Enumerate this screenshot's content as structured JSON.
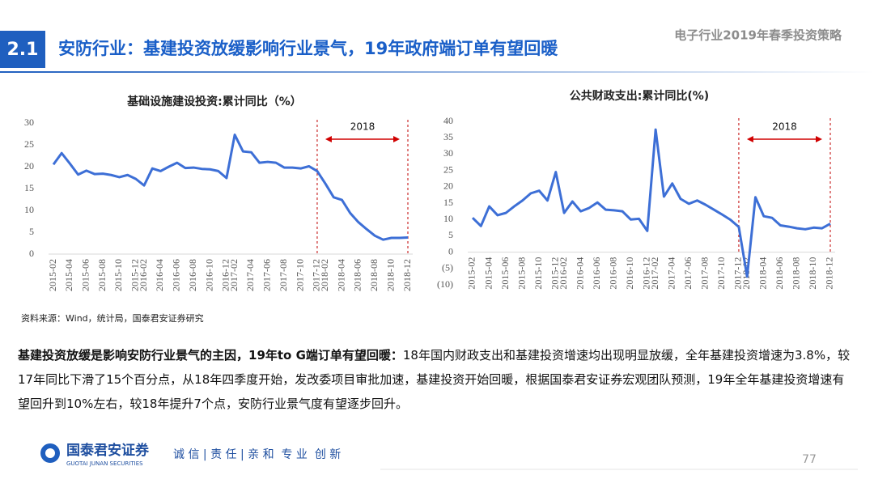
{
  "header": {
    "section": "2.1",
    "title": "安防行业：基建投资放缓影响行业景气，19年政府端订单有望回暖",
    "report": "电子行业2019年春季投资策略"
  },
  "chart_data": [
    {
      "type": "line",
      "title": "基础设施建设投资:累计同比（%）",
      "annotation": "2018",
      "categories": [
        "2015-02",
        null,
        "2015-04",
        null,
        "2015-06",
        null,
        "2015-08",
        null,
        "2015-10",
        null,
        "2015-12",
        "2016-02",
        null,
        "2016-04",
        null,
        "2016-06",
        null,
        "2016-08",
        null,
        "2016-10",
        null,
        "2016-12",
        "2017-02",
        null,
        "2017-04",
        null,
        "2017-06",
        null,
        "2017-08",
        null,
        "2017-10",
        null,
        "2017-12",
        "2018-02",
        null,
        "2018-04",
        null,
        "2018-06",
        null,
        "2018-08",
        null,
        "2018-10",
        null,
        "2018-12"
      ],
      "series": [
        {
          "color": "#3d6fd6",
          "values": [
            20.5,
            23.1,
            20.7,
            18.2,
            19.1,
            18.3,
            18.4,
            18.1,
            17.6,
            18.1,
            17.2,
            15.7,
            19.6,
            19.0,
            20.0,
            20.9,
            19.7,
            19.8,
            19.5,
            19.4,
            19.0,
            17.4,
            27.3,
            23.5,
            23.3,
            20.9,
            21.1,
            20.9,
            19.8,
            19.8,
            19.6,
            20.1,
            19.0,
            16.1,
            13.0,
            12.4,
            9.4,
            7.3,
            5.7,
            4.2,
            3.3,
            3.7,
            3.7,
            3.8
          ]
        }
      ],
      "ylim": [
        0,
        30
      ],
      "yticks": [
        0,
        5,
        10,
        15,
        20,
        25,
        30
      ]
    },
    {
      "type": "line",
      "title": "公共财政支出:累计同比(%)",
      "annotation": "2018",
      "categories": [
        "2015-02",
        null,
        "2015-04",
        null,
        "2015-06",
        null,
        "2015-08",
        null,
        "2015-10",
        null,
        "2015-12",
        "2016-02",
        null,
        "2016-04",
        null,
        "2016-06",
        null,
        "2016-08",
        null,
        "2016-10",
        null,
        "2016-12",
        "2017-02",
        null,
        "2017-04",
        null,
        "2017-06",
        null,
        "2017-08",
        null,
        "2017-10",
        null,
        "2017-12",
        "2018-02",
        null,
        "2018-04",
        null,
        "2018-06",
        null,
        "2018-08",
        null,
        "2018-10",
        null,
        "2018-12"
      ],
      "series": [
        {
          "color": "#3d6fd6",
          "values": [
            10.5,
            8.0,
            14.0,
            11.3,
            12.0,
            14.0,
            15.8,
            18.0,
            18.8,
            15.8,
            24.5,
            12.0,
            15.5,
            12.5,
            13.5,
            15.2,
            13.0,
            12.8,
            12.5,
            10.0,
            10.2,
            6.5,
            37.5,
            17.0,
            21.0,
            16.3,
            14.8,
            15.8,
            14.5,
            13.0,
            11.5,
            9.9,
            7.7,
            -7.5,
            16.8,
            11.0,
            10.5,
            8.2,
            7.8,
            7.3,
            7.0,
            7.5,
            7.3,
            8.7
          ]
        }
      ],
      "ylim": [
        -10,
        40
      ],
      "negative_tick_color": "#c00000",
      "yticks": [
        {
          "value": -10,
          "label": "(10)"
        },
        {
          "value": -5,
          "label": "(5)"
        },
        0,
        5,
        10,
        15,
        20,
        25,
        30,
        35,
        40
      ]
    }
  ],
  "source": "资料来源：Wind，统计局，国泰君安证券研究",
  "body": {
    "lead": "基建投资放缓是影响安防行业景气的主因，19年to G端订单有望回暖：",
    "text": "18年国内财政支出和基建投资增速均出现明显放缓，全年基建投资增速为3.8%，较17年同比下滑了15个百分点，从18年四季度开始，发改委项目审批加速，基建投资开始回暖，根据国泰君安证券宏观团队预测，19年全年基建投资增速有望回升到10%左右，较18年提升7个点，安防行业景气度有望逐步回升。"
  },
  "footer": {
    "company": "国泰君安证券",
    "company_en": "GUOTAI JUNAN SECURITIES",
    "slogan": "诚 信 | 责 任 | 亲 和  专 业  创 新",
    "page": "77"
  }
}
